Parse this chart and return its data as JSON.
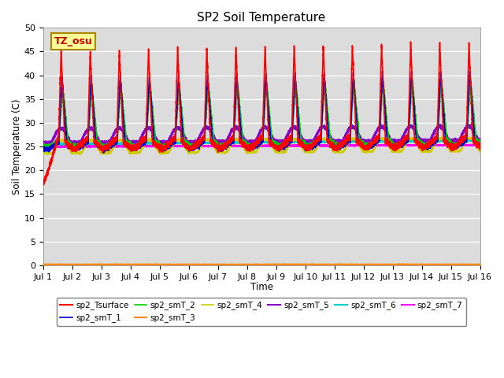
{
  "title": "SP2 Soil Temperature",
  "xlabel": "Time",
  "ylabel": "Soil Temperature (C)",
  "ylim": [
    0,
    50
  ],
  "xlim_days": 15,
  "label_box_text": "TZ_osu",
  "label_box_color": "#FFFF99",
  "label_box_edge": "#AA8800",
  "label_box_text_color": "#CC0000",
  "bg_color": "#DCDCDC",
  "series_order": [
    "sp2_smT_6",
    "sp2_smT_7",
    "sp2_smT_3",
    "sp2_smT_4",
    "sp2_smT_5",
    "sp2_smT_2",
    "sp2_smT_1",
    "sp2_Tsurface"
  ],
  "series": {
    "sp2_Tsurface": {
      "color": "#FF0000",
      "lw": 1.2,
      "zorder": 10
    },
    "sp2_smT_1": {
      "color": "#0000CC",
      "lw": 1.2,
      "zorder": 9
    },
    "sp2_smT_2": {
      "color": "#00CC00",
      "lw": 1.2,
      "zorder": 8
    },
    "sp2_smT_3": {
      "color": "#FF8800",
      "lw": 1.5,
      "zorder": 7
    },
    "sp2_smT_4": {
      "color": "#CCCC00",
      "lw": 1.2,
      "zorder": 6
    },
    "sp2_smT_5": {
      "color": "#8800CC",
      "lw": 1.5,
      "zorder": 5
    },
    "sp2_smT_6": {
      "color": "#00CCCC",
      "lw": 1.5,
      "zorder": 4
    },
    "sp2_smT_7": {
      "color": "#FF00FF",
      "lw": 1.5,
      "zorder": 3
    }
  },
  "tick_dates": [
    "Jul 1",
    "Jul 2",
    "Jul 3",
    "Jul 4",
    "Jul 5",
    "Jul 6",
    "Jul 7",
    "Jul 8",
    "Jul 9",
    "Jul 10",
    "Jul 11",
    "Jul 12",
    "Jul 13",
    "Jul 14",
    "Jul 15",
    "Jul 16"
  ],
  "n_points": 7200,
  "days": 15
}
